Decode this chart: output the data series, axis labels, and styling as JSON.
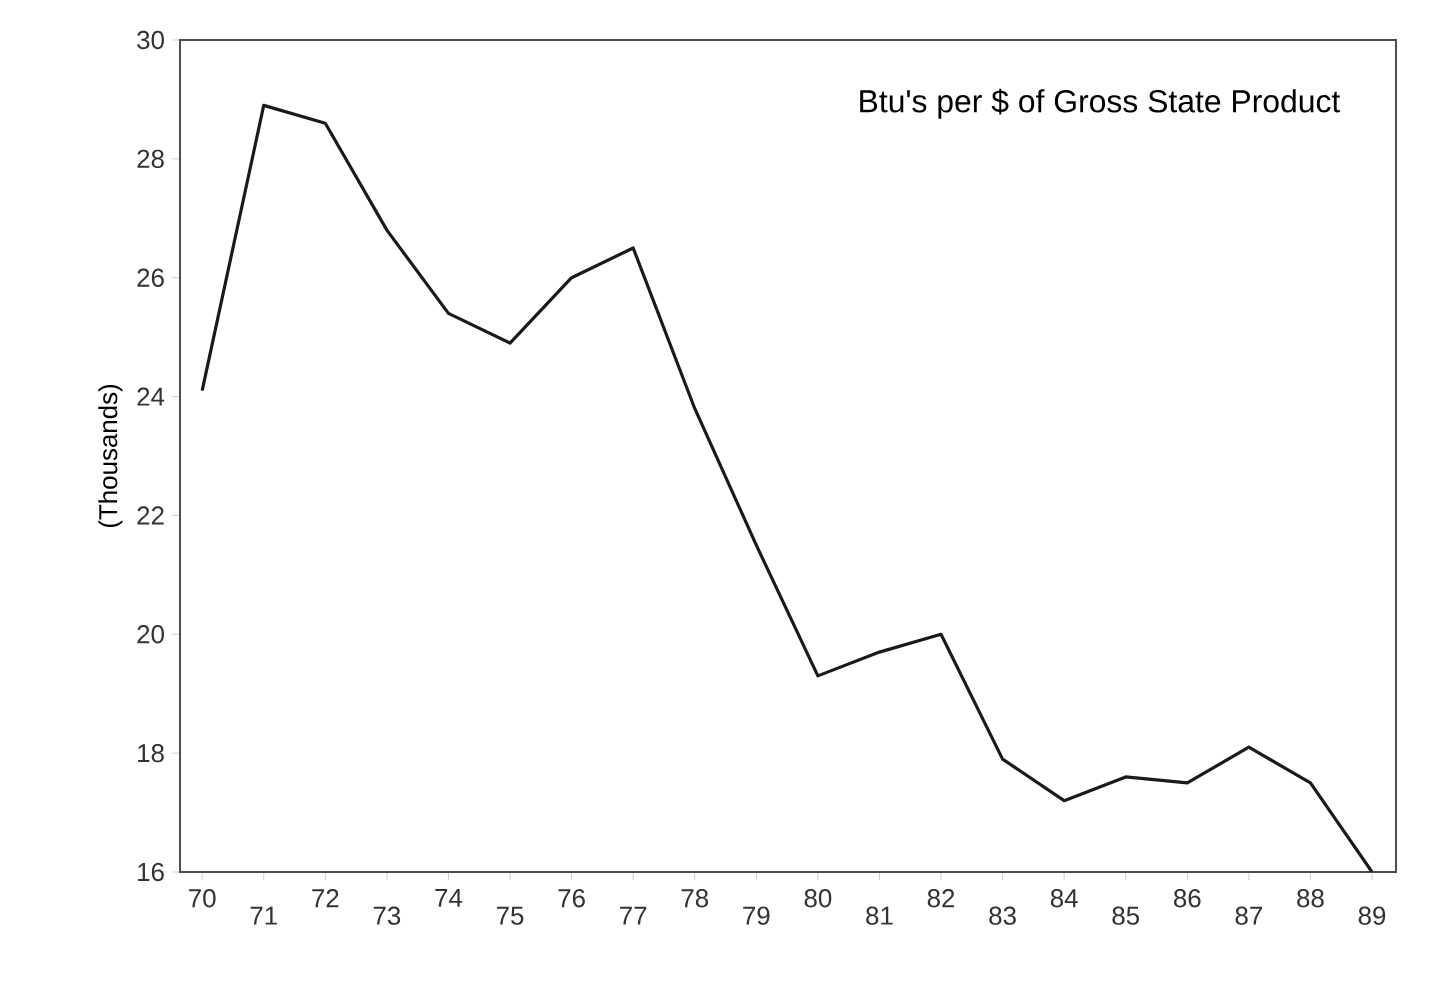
{
  "chart_data": {
    "type": "line",
    "ylabel": "(Thousands)",
    "annotations": [
      "Btu's per $ of Gross State Product"
    ],
    "categories": [
      "70",
      "71",
      "72",
      "73",
      "74",
      "75",
      "76",
      "77",
      "78",
      "79",
      "80",
      "81",
      "82",
      "83",
      "84",
      "85",
      "86",
      "87",
      "88",
      "89"
    ],
    "values": [
      24.1,
      28.9,
      28.6,
      26.8,
      25.4,
      24.9,
      26.0,
      26.5,
      23.8,
      21.5,
      19.3,
      19.7,
      20.0,
      17.9,
      17.2,
      17.6,
      17.5,
      18.1,
      17.5,
      16.0
    ],
    "color": "#1a1a1a",
    "marker": "none",
    "line_style": "solid",
    "ylim": [
      16,
      30
    ],
    "yticks": [
      16,
      18,
      20,
      22,
      24,
      26,
      28,
      30
    ]
  }
}
